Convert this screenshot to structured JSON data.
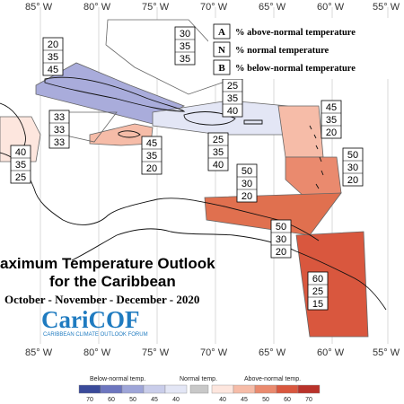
{
  "map": {
    "longitude_labels_top": [
      "85° W",
      "80° W",
      "75° W",
      "70° W",
      "65° W",
      "60° W",
      "55° W"
    ],
    "longitude_labels_bottom": [
      "85° W",
      "80° W",
      "75° W",
      "70° W",
      "65° W",
      "60° W",
      "55° W"
    ]
  },
  "legend": {
    "rows": [
      {
        "key": "A",
        "text": "% above-normal temperature"
      },
      {
        "key": "N",
        "text": "% normal temperature"
      },
      {
        "key": "B",
        "text": "% below-normal temperature"
      }
    ]
  },
  "forecast_boxes": [
    {
      "region": "Bahamas",
      "values": [
        "30",
        "35",
        "35"
      ]
    },
    {
      "region": "Cuba",
      "values": [
        "20",
        "35",
        "45"
      ]
    },
    {
      "region": "Central America",
      "values": [
        "33",
        "33",
        "33"
      ]
    },
    {
      "region": "Belize",
      "values": [
        "40",
        "35",
        "25"
      ]
    },
    {
      "region": "Jamaica",
      "values": [
        "45",
        "35",
        "20"
      ]
    },
    {
      "region": "Hispaniola",
      "values": [
        "25",
        "35",
        "40"
      ]
    },
    {
      "region": "Puerto Rico",
      "values": [
        "25",
        "35",
        "40"
      ]
    },
    {
      "region": "Leeward Islands",
      "values": [
        "45",
        "35",
        "20"
      ]
    },
    {
      "region": "Windward Islands",
      "values": [
        "50",
        "30",
        "20"
      ]
    },
    {
      "region": "ABC Islands",
      "values": [
        "50",
        "30",
        "20"
      ]
    },
    {
      "region": "Trinidad",
      "values": [
        "50",
        "30",
        "20"
      ]
    },
    {
      "region": "Guianas",
      "values": [
        "60",
        "25",
        "15"
      ]
    }
  ],
  "title": {
    "line1": "aximum Temperature Outlook",
    "line2": "for the Caribbean",
    "period": "October - November - December - 2020"
  },
  "logo": {
    "name": "CariCOF",
    "tagline": "CARIBBEAN CLIMATE OUTLOOK FORUM"
  },
  "colorbar": {
    "below_label": "Below-normal temp.",
    "normal_label": "Normal temp.",
    "above_label": "Above-normal temp.",
    "below_ticks": [
      "70",
      "60",
      "50",
      "45",
      "40"
    ],
    "normal_ticks": [],
    "above_ticks": [
      "40",
      "45",
      "50",
      "60",
      "70"
    ],
    "colors": {
      "below": [
        "#3a4a9a",
        "#6d76bf",
        "#9ea5d8",
        "#c9cdea",
        "#e3e6f5"
      ],
      "normal": "#c8c8c8",
      "above": [
        "#fde6de",
        "#f6bca8",
        "#ea8a6e",
        "#d9573e",
        "#b9322a"
      ]
    }
  },
  "colors": {
    "cuba": "#a9acdb",
    "hispaniola": "#e3e6f5",
    "jamaica": "#f6bca8",
    "central_america": "#fde6de",
    "leeward": "#f6bca8",
    "windward": "#ea8a6e",
    "abc": "#e0704f",
    "guianas": "#d9573e"
  }
}
